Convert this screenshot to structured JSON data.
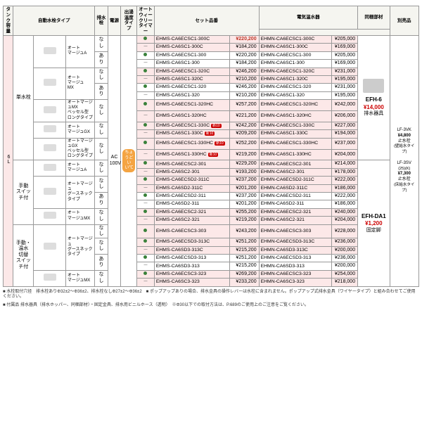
{
  "colors": {
    "dotGreen": "#3a813a",
    "pinkRow": "#fce8e8",
    "highlightPrice": "#c0392b",
    "headerBg": "#f5f5f0"
  },
  "tankCapacity": "6L",
  "powerSource": "AC\n100V",
  "tempBadge": "ちょうど\nいい℃",
  "headers": {
    "tank": "タンク\n容量",
    "faucetType": "自動水栓タイプ",
    "drain": "排水栓",
    "power": "電源",
    "tempType": "出湯温度\nタイプ",
    "timer": "オート\nウィークリー\nタイマー",
    "setNum": "セット品番",
    "heater": "電気温水器",
    "parts": "同梱部材",
    "sold": "別売品"
  },
  "opGroups": [
    {
      "label": "単水栓",
      "faucets": [
        {
          "name": "オート\nマージュA",
          "drainRows": [
            "なし",
            "あり"
          ]
        },
        {
          "name": "オート\nマージュ\nMX",
          "drainRows": [
            "なし",
            "あり"
          ]
        },
        {
          "name": "オートマージュMX\nベッセル型\nロングタイプ",
          "drainRows": [
            "なし"
          ]
        },
        {
          "name": "オート\nマージュGX",
          "drainRows": [
            "なし"
          ]
        },
        {
          "name": "オートマージュGX\nベッセル型\nロングタイプ",
          "drainRows": [
            "なし"
          ]
        }
      ]
    },
    {
      "label": "手動\nスイッチ付",
      "faucets": [
        {
          "name": "オート\nマージュA",
          "drainRows": [
            "なし",
            "あり"
          ]
        },
        {
          "name": "オートマージュ\nグースネック\nタイプ",
          "drainRows": [
            "なし",
            "あり"
          ]
        },
        {
          "name": "オート\nマージュMX",
          "drainRows": [
            "なし",
            "あり"
          ]
        }
      ]
    },
    {
      "label": "手動・温水\n切替\nスイッチ付",
      "faucets": [
        {
          "name": "オートマージュ\nグースネック\nタイプ",
          "drainRows": [
            "なし",
            "あり"
          ]
        },
        {
          "name": "オート\nマージュMX",
          "drainRows": [
            "なし",
            "あり"
          ]
        }
      ]
    }
  ],
  "rows": [
    {
      "pink": true,
      "timer": "dot",
      "set": "EHMS-CA6ECSC1-300C",
      "sp": "¥220,200",
      "heater": "EHMN-CA6ECSC1-300C",
      "hp": "¥205,000"
    },
    {
      "pink": true,
      "timer": "dash",
      "set": "EHMS-CA6SC1-300C",
      "sp": "¥184,200",
      "heater": "EHMN-CA6SC1-300C",
      "hp": "¥169,000"
    },
    {
      "pink": false,
      "timer": "dot",
      "set": "EHMS-CA6ECSC1-300",
      "sp": "¥220,200",
      "heater": "EHMN-CA6ECSC1-300",
      "hp": "¥205,000"
    },
    {
      "pink": false,
      "timer": "dash",
      "set": "EHMS-CA6SC1-300",
      "sp": "¥184,200",
      "heater": "EHMN-CA6SC1-300",
      "hp": "¥169,000"
    },
    {
      "pink": true,
      "timer": "dot",
      "set": "EHMS-CA6ECSC1-320C",
      "sp": "¥246,200",
      "heater": "EHMN-CA6ECSC1-320C",
      "hp": "¥231,000"
    },
    {
      "pink": true,
      "timer": "dash",
      "set": "EHMS-CA6SC1-320C",
      "sp": "¥210,200",
      "heater": "EHMN-CA6SC1-320C",
      "hp": "¥195,000"
    },
    {
      "pink": false,
      "timer": "dot",
      "set": "EHMS-CA6ECSC1-320",
      "sp": "¥246,200",
      "heater": "EHMN-CA6ECSC1-320",
      "hp": "¥231,000"
    },
    {
      "pink": false,
      "timer": "dash",
      "set": "EHMS-CA6SC1-320",
      "sp": "¥210,200",
      "heater": "EHMN-CA6SC1-320",
      "hp": "¥195,000"
    },
    {
      "pink": true,
      "timer": "dot",
      "set": "EHMS-CA6ECSC1-320HC",
      "sp": "¥257,200",
      "heater": "EHMN-CA6ECSC1-320HC",
      "hp": "¥242,000"
    },
    {
      "pink": true,
      "timer": "dash",
      "set": "EHMS-CA6SC1-320HC",
      "sp": "¥221,200",
      "heater": "EHMN-CA6SC1-320HC",
      "hp": "¥206,000"
    },
    {
      "pink": true,
      "timer": "dot",
      "set": "EHMS-CA6ECSC1-330C",
      "sp": "¥242,200",
      "heater": "EHMN-CA6ECSC1-330C",
      "hp": "¥227,000",
      "new": true
    },
    {
      "pink": true,
      "timer": "dash",
      "set": "EHMS-CA6SC1-330C",
      "sp": "¥209,200",
      "heater": "EHMN-CA6SC1-330C",
      "hp": "¥194,000",
      "new": true
    },
    {
      "pink": true,
      "timer": "dot",
      "set": "EHMS-CA6ECSC1-330HC",
      "sp": "¥252,200",
      "heater": "EHMN-CA6ECSC1-330HC",
      "hp": "¥237,000",
      "new": true
    },
    {
      "pink": true,
      "timer": "dash",
      "set": "EHMS-CA6SC1-330HC",
      "sp": "¥219,200",
      "heater": "EHMN-CA6SC1-330HC",
      "hp": "¥204,000",
      "new": true
    },
    {
      "pink": true,
      "timer": "dot",
      "set": "EHMS-CA6ECSC2-301",
      "sp": "¥229,200",
      "heater": "EHMN-CA6ECSC2-301",
      "hp": "¥214,000",
      "sep": true
    },
    {
      "pink": true,
      "timer": "dash",
      "set": "EHMS-CA6SC2-301",
      "sp": "¥193,200",
      "heater": "EHMN-CA6SC2-301",
      "hp": "¥178,000"
    },
    {
      "pink": true,
      "timer": "dot",
      "set": "EHMS-CA6ECSD2-311C",
      "sp": "¥237,200",
      "heater": "EHMN-CA6ECSD2-311C",
      "hp": "¥222,000"
    },
    {
      "pink": true,
      "timer": "dash",
      "set": "EHMS-CA6SD2-311C",
      "sp": "¥201,200",
      "heater": "EHMN-CA6SD2-311C",
      "hp": "¥186,000"
    },
    {
      "pink": false,
      "timer": "dot",
      "set": "EHMS-CA6ECSD2-311",
      "sp": "¥237,200",
      "heater": "EHMN-CA6ECSD2-311",
      "hp": "¥222,000"
    },
    {
      "pink": false,
      "timer": "dash",
      "set": "EHMS-CA6SD2-311",
      "sp": "¥201,200",
      "heater": "EHMN-CA6SD2-311",
      "hp": "¥186,000"
    },
    {
      "pink": true,
      "timer": "dot",
      "set": "EHMS-CA6ECSC2-321",
      "sp": "¥255,200",
      "heater": "EHMN-CA6ECSC2-321",
      "hp": "¥240,000"
    },
    {
      "pink": true,
      "timer": "dash",
      "set": "EHMS-CA6SC2-321",
      "sp": "¥219,200",
      "heater": "EHMN-CA6SC2-321",
      "hp": "¥204,000"
    },
    {
      "pink": true,
      "timer": "dot",
      "set": "EHMS-CA6ECSC3-303",
      "sp": "¥243,200",
      "heater": "EHMN-CA6ECSC3-303",
      "hp": "¥228,000",
      "sep": true
    },
    {
      "pink": true,
      "timer": "dot",
      "set": "EHMS-CA6ECSD3-313C",
      "sp": "¥251,200",
      "heater": "EHMN-CA6ECSD3-313C",
      "hp": "¥236,000"
    },
    {
      "pink": true,
      "timer": "dash",
      "set": "EHMS-CA6SD3-313C",
      "sp": "¥215,200",
      "heater": "EHMN-CA6SD3-313C",
      "hp": "¥200,000"
    },
    {
      "pink": false,
      "timer": "dot",
      "set": "EHMS-CA6ECSD3-313",
      "sp": "¥251,200",
      "heater": "EHMN-CA6ECSD3-313",
      "hp": "¥236,000"
    },
    {
      "pink": false,
      "timer": "dash",
      "set": "EHMS-CA6SD3-313",
      "sp": "¥215,200",
      "heater": "EHMN-CA6SD3-313",
      "hp": "¥200,000"
    },
    {
      "pink": true,
      "timer": "dot",
      "set": "EHMS-CA6ECSC3-323",
      "sp": "¥269,200",
      "heater": "EHMN-CA6ECSC3-323",
      "hp": "¥254,000"
    },
    {
      "pink": true,
      "timer": "dash",
      "set": "EHMS-CA6SC3-323",
      "sp": "¥233,200",
      "heater": "EHMN-CA6SC3-323",
      "hp": "¥218,000"
    }
  ],
  "accessory1": {
    "code": "EFH-6",
    "price": "¥14,000",
    "desc": "排水器具"
  },
  "accessory2": {
    "code": "EFH-DA1",
    "price": "¥1,200",
    "desc": "固定脚"
  },
  "soldSep": {
    "l1": "LF-3VK",
    "l2": "¥4,800",
    "l3": "止水栓",
    "l4": "(壁給水タイプ)",
    "l5": "LF-3SV",
    "l6": "(25)(K)",
    "l7": "¥7,300",
    "l8": "止水栓",
    "l9": "(床給水タイプ)"
  },
  "footnotes": {
    "f1": "■ 水栓取付穴径　排水栓ありΦ32±2～Φ36±2、排水栓なしΦ27±2～Φ36±2　■ ポップアップありの場合、排水金具の操作レバーは水栓に含まれません。ポップアップ式排水金具（ワイヤータイプ）と組み合わせてご使用ください。",
    "f2": "■ 付属品 排水器具（排水ホッパー、同梱部材）・固定金具、排水用ビニルホース（透明）　※Φ30以下での取付方法は、P.689のご使用上のご注意をご覧ください。"
  }
}
